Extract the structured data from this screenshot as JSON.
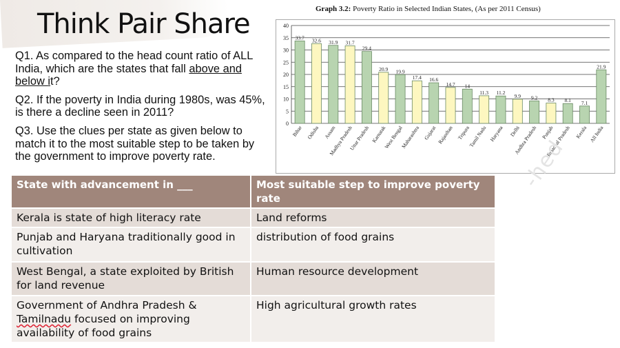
{
  "slide": {
    "title": "Think Pair Share",
    "watermark": "-hed"
  },
  "questions": {
    "q1_before": "Q1. As compared to the head count ratio of ALL India, which are the states that fall ",
    "q1_underlined_a": "above and below ",
    "q1_underlined_b": "i",
    "q1_after": "t?",
    "q2": "Q2. If the poverty in India during 1980s, was 45%, is there a decline seen in 2011?",
    "q3": "Q3. Use the clues per state as given below to match it to the most suitable step to be taken by the government to improve poverty rate."
  },
  "chart_caption": {
    "label": "Graph 3.2:",
    "text": " Poverty Ratio in Selected Indian States, (As per 2011 Census)"
  },
  "chart_data": {
    "type": "bar",
    "title": "Graph 3.2: Poverty Ratio in Selected Indian States, (As per 2011 Census)",
    "categories": [
      "Bihar",
      "Odisha",
      "Assam",
      "Madhya Pradesh",
      "Uttar Pradesh",
      "Karnatak",
      "West Bengal",
      "Maharashtra",
      "Gujarat",
      "Rajasthan",
      "Tripura",
      "Tamil Nadu",
      "Haryana",
      "Delhi",
      "Andhra Pradesh",
      "Punjab",
      "Himachal Pradesh",
      "Kerala",
      "All India"
    ],
    "values": [
      33.7,
      32.6,
      31.9,
      31.7,
      29.4,
      20.9,
      19.9,
      17.4,
      16.6,
      14.7,
      14,
      11.3,
      11.2,
      9.9,
      9.2,
      8.3,
      8.1,
      7.1,
      21.9
    ],
    "value_labels": [
      "33.7",
      "32.6",
      "31.9",
      "31.7",
      "29.4",
      "20.9",
      "19.9",
      "17.4",
      "16.6",
      "14.7",
      "14",
      "11.3",
      "11.2",
      "9.9",
      "9.2",
      "8.3",
      "8.1",
      "7.1",
      "21.9"
    ],
    "bar_colors": [
      "#b8d4b0",
      "#fdf7c0",
      "#b8d4b0",
      "#fdf7c0",
      "#b8d4b0",
      "#fdf7c0",
      "#b8d4b0",
      "#fdf7c0",
      "#b8d4b0",
      "#fdf7c0",
      "#b8d4b0",
      "#fdf7c0",
      "#b8d4b0",
      "#fdf7c0",
      "#b8d4b0",
      "#fdf7c0",
      "#b8d4b0",
      "#b8d4b0",
      "#b8d4b0"
    ],
    "ylim": [
      0,
      40
    ],
    "yticks": [
      0,
      5,
      10,
      15,
      20,
      25,
      30,
      35,
      40
    ],
    "grid": true,
    "xlabel": "",
    "ylabel": ""
  },
  "table": {
    "headers": [
      "State with advancement in ___",
      "Most suitable step to improve poverty rate"
    ],
    "rows": [
      {
        "state": "Kerala is state of high literacy rate",
        "step": "Land reforms"
      },
      {
        "state": "Punjab and Haryana traditionally good in cultivation",
        "step": "distribution of food grains"
      },
      {
        "state": "West Bengal, a state exploited by British for land revenue",
        "step": "Human resource development"
      },
      {
        "state_before": "Government of Andhra Pradesh & ",
        "state_squiggle": "Tamilnadu",
        "state_after": " focused on improving availability of food grains",
        "step": "High agricultural growth rates"
      }
    ]
  },
  "colors": {
    "header_bg": "#a0867b",
    "row_dark": "#e4dcd7",
    "row_light": "#f2eeeb",
    "bar_green": "#b8d4b0",
    "bar_yellow": "#fdf7c0",
    "bar_stroke": "#6a8a64"
  }
}
